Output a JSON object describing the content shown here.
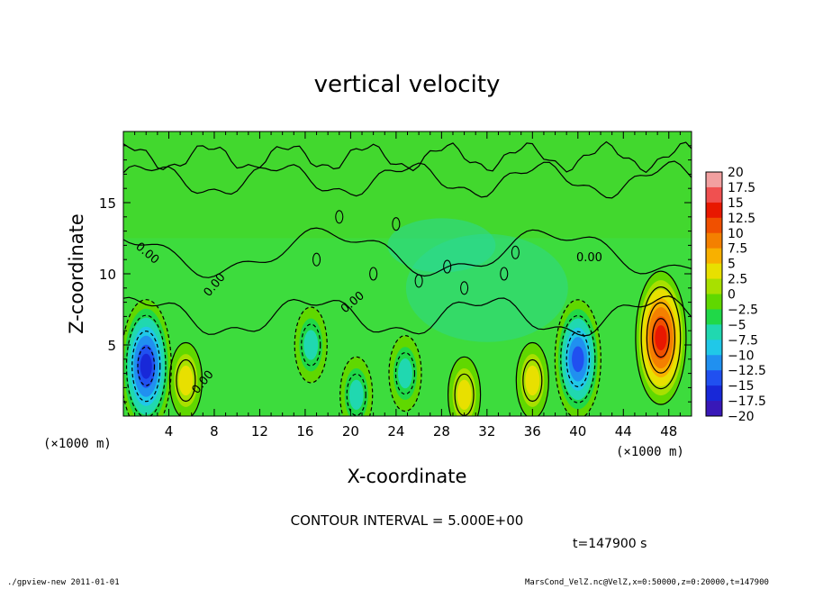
{
  "chart_data": {
    "type": "heatmap",
    "title": "vertical velocity",
    "xlabel": "X-coordinate",
    "ylabel": "Z-coordinate",
    "x_unit_label": "(×1000 m)",
    "xlim": [
      0,
      50
    ],
    "ylim": [
      0,
      20
    ],
    "xticks": [
      4,
      8,
      12,
      16,
      20,
      24,
      28,
      32,
      36,
      40,
      44,
      48
    ],
    "yticks": [
      5,
      10,
      15
    ],
    "colorbar_ticks": [
      "20",
      "17.5",
      "15",
      "12.5",
      "10",
      "7.5",
      "5",
      "2.5",
      "0",
      "−2.5",
      "−5",
      "−7.5",
      "−10",
      "−12.5",
      "−15",
      "−17.5",
      "−20"
    ],
    "colorbar_colors": [
      "#f2a0a0",
      "#f05050",
      "#e81800",
      "#f05000",
      "#f48000",
      "#f8b000",
      "#e8e000",
      "#a8e000",
      "#60d800",
      "#20d848",
      "#20d8b0",
      "#20c8e8",
      "#2090f0",
      "#2050f0",
      "#1828d8",
      "#3818b8",
      "#6818b0"
    ],
    "contour_labels": [
      "0.00",
      "0.00",
      "0.00",
      "0.00",
      "0.00"
    ],
    "contour_interval_text": "CONTOUR INTERVAL = 5.000E+00",
    "time_label": "t=147900 s",
    "features": [
      {
        "x": 2.0,
        "z": 3.5,
        "w": -15,
        "kind": "downdraft"
      },
      {
        "x": 5.5,
        "z": 2.5,
        "w": 5,
        "kind": "updraft"
      },
      {
        "x": 16.5,
        "z": 5.0,
        "w": -5,
        "kind": "downdraft"
      },
      {
        "x": 20.5,
        "z": 1.5,
        "w": -5,
        "kind": "downdraft"
      },
      {
        "x": 24.8,
        "z": 3.0,
        "w": -5,
        "kind": "downdraft"
      },
      {
        "x": 30.0,
        "z": 1.5,
        "w": 5,
        "kind": "updraft"
      },
      {
        "x": 36.0,
        "z": 2.5,
        "w": 5,
        "kind": "updraft"
      },
      {
        "x": 40.0,
        "z": 4.0,
        "w": -12.5,
        "kind": "downdraft"
      },
      {
        "x": 47.3,
        "z": 5.5,
        "w": 15,
        "kind": "updraft"
      }
    ]
  },
  "footer": {
    "left": "./gpview-new  2011-01-01",
    "right": "MarsCond_VelZ.nc@VelZ,x=0:50000,z=0:20000,t=147900"
  },
  "colors": {
    "background_field": "#3ddc3d",
    "upper_field": "#44d628"
  }
}
